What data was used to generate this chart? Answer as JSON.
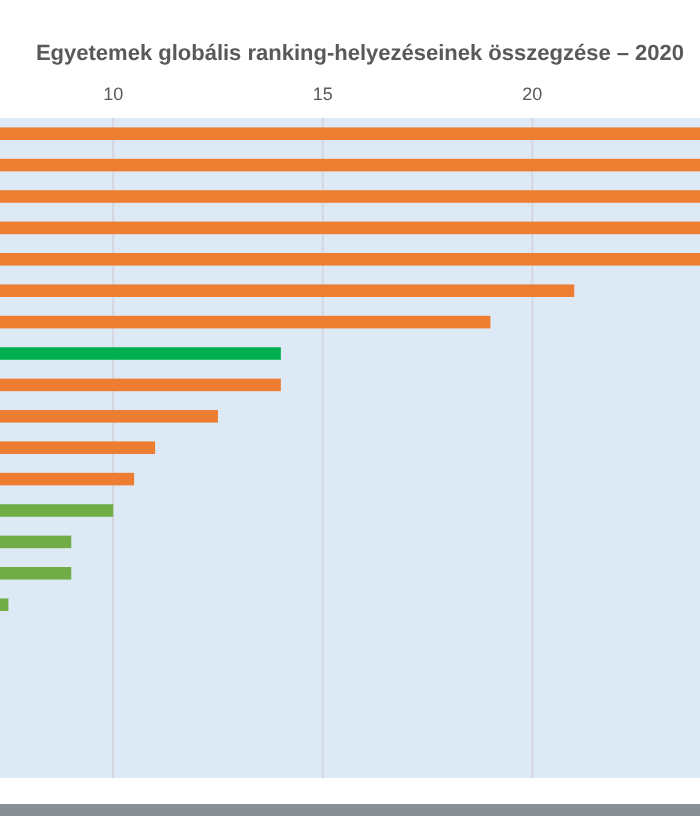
{
  "chart_data": {
    "type": "bar",
    "orientation": "horizontal",
    "title": "Egyetemek globális ranking-helyezéseinek összegzése – 2020",
    "categories": [
      null,
      null,
      null,
      null,
      null,
      null,
      null,
      null,
      null,
      null,
      null,
      null,
      null,
      null,
      null,
      null
    ],
    "values": [
      24,
      24,
      24,
      24,
      24,
      21,
      19,
      14,
      14,
      12.5,
      11,
      10.5,
      10,
      9,
      9,
      7.5
    ],
    "colors": [
      "#ed7d31",
      "#ed7d31",
      "#ed7d31",
      "#ed7d31",
      "#ed7d31",
      "#ed7d31",
      "#ed7d31",
      "#00b050",
      "#ed7d31",
      "#ed7d31",
      "#ed7d31",
      "#ed7d31",
      "#70ad47",
      "#70ad47",
      "#70ad47",
      "#70ad47"
    ],
    "xlim": [
      7.3,
      24
    ],
    "xticks": [
      10,
      15,
      20
    ],
    "grid": "x",
    "tick_labels": "x"
  }
}
